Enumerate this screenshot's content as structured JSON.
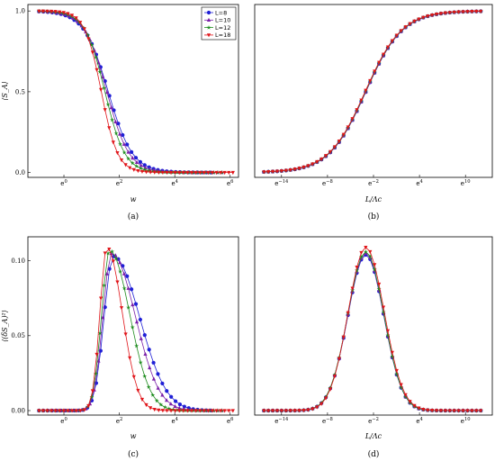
{
  "legend": [
    "L=8",
    "L=10",
    "L=12",
    "L=18"
  ],
  "colors": [
    "#1f1fd6",
    "#7a1fa8",
    "#1e8c1e",
    "#e0151a"
  ],
  "markers": [
    "circle",
    "triangle-up",
    "star",
    "triangle-down"
  ],
  "chart_data": [
    {
      "id": "a",
      "type": "line",
      "caption": "(a)",
      "xlabel": "w",
      "ylabel": "⟨S_A⟩",
      "x_ticks": [
        {
          "v": 0,
          "label": "e0"
        },
        {
          "v": 2,
          "label": "e2"
        },
        {
          "v": 4,
          "label": "e4"
        },
        {
          "v": 6,
          "label": "e6"
        }
      ],
      "y_ticks": [
        {
          "v": 0,
          "label": "0.0"
        },
        {
          "v": 0.5,
          "label": "0.5"
        },
        {
          "v": 1,
          "label": "1.0"
        }
      ],
      "xlim": [
        -1.3,
        6.3
      ],
      "ylim": [
        -0.03,
        1.04
      ],
      "legend_position": "top-right",
      "curve": {
        "kind": "sigmoid",
        "x0": [
          1.6,
          1.55,
          1.48,
          1.35
        ],
        "k": [
          2.3,
          2.5,
          2.8,
          3.4
        ],
        "amp": 1.0
      },
      "x_range": [
        [
          -0.9,
          5.3
        ],
        [
          -0.9,
          5.7
        ],
        [
          -0.9,
          5.7
        ],
        [
          -0.9,
          6.1
        ]
      ],
      "n_points": [
        40,
        44,
        46,
        48
      ]
    },
    {
      "id": "b",
      "type": "line",
      "caption": "(b)",
      "xlabel": "L/Λc",
      "ylabel": "",
      "x_ticks": [
        {
          "v": -14,
          "label": "e−14"
        },
        {
          "v": -8,
          "label": "e−8"
        },
        {
          "v": -2,
          "label": "e−2"
        },
        {
          "v": 4,
          "label": "e4"
        },
        {
          "v": 10,
          "label": "e10"
        }
      ],
      "y_ticks": [],
      "xlim": [
        -17.5,
        13.5
      ],
      "ylim": [
        -0.03,
        1.04
      ],
      "curve": {
        "kind": "sigmoid",
        "x0": [
          -3.0,
          -3.0,
          -3.05,
          -3.1
        ],
        "k": [
          -0.42,
          -0.42,
          -0.42,
          -0.42
        ],
        "amp": 1.0
      },
      "x_range": [
        [
          -16.3,
          12
        ],
        [
          -16.3,
          12
        ],
        [
          -16.3,
          12
        ],
        [
          -16.3,
          12
        ]
      ],
      "n_points": [
        50,
        50,
        50,
        50
      ]
    },
    {
      "id": "c",
      "type": "line",
      "caption": "(c)",
      "xlabel": "w",
      "ylabel": "⟨(δS_A)²⟩",
      "x_ticks": [
        {
          "v": 0,
          "label": "e0"
        },
        {
          "v": 2,
          "label": "e2"
        },
        {
          "v": 4,
          "label": "e4"
        },
        {
          "v": 6,
          "label": "e6"
        }
      ],
      "y_ticks": [
        {
          "v": 0,
          "label": "0.00"
        },
        {
          "v": 0.05,
          "label": "0.05"
        },
        {
          "v": 0.1,
          "label": "0.10"
        }
      ],
      "xlim": [
        -1.3,
        6.3
      ],
      "ylim": [
        -0.003,
        0.116
      ],
      "curve": {
        "kind": "peak",
        "mu": [
          1.78,
          1.72,
          1.65,
          1.55
        ],
        "sl": [
          0.33,
          0.31,
          0.29,
          0.25
        ],
        "sr": [
          0.95,
          0.85,
          0.72,
          0.55
        ],
        "amp": [
          0.103,
          0.105,
          0.107,
          0.109
        ]
      },
      "x_range": [
        [
          -0.9,
          5.3
        ],
        [
          -0.9,
          5.7
        ],
        [
          -0.9,
          5.7
        ],
        [
          -0.9,
          6.1
        ]
      ],
      "n_points": [
        40,
        44,
        46,
        48
      ]
    },
    {
      "id": "d",
      "type": "line",
      "caption": "(d)",
      "xlabel": "L/Λc",
      "ylabel": "",
      "x_ticks": [
        {
          "v": -14,
          "label": "e−14"
        },
        {
          "v": -8,
          "label": "e−8"
        },
        {
          "v": -2,
          "label": "e−2"
        },
        {
          "v": 4,
          "label": "e4"
        },
        {
          "v": 10,
          "label": "e10"
        }
      ],
      "y_ticks": [],
      "xlim": [
        -17.5,
        13.5
      ],
      "ylim": [
        -0.003,
        0.116
      ],
      "curve": {
        "kind": "peak",
        "mu": [
          -3.0,
          -3.0,
          -3.0,
          -3.0
        ],
        "sl": [
          2.35,
          2.35,
          2.35,
          2.3
        ],
        "sr": [
          2.35,
          2.35,
          2.35,
          2.4
        ],
        "amp": [
          0.104,
          0.105,
          0.106,
          0.109
        ]
      },
      "x_range": [
        [
          -16.3,
          12
        ],
        [
          -16.3,
          12
        ],
        [
          -16.3,
          12
        ],
        [
          -16.3,
          12
        ]
      ],
      "n_points": [
        50,
        50,
        50,
        50
      ]
    }
  ]
}
